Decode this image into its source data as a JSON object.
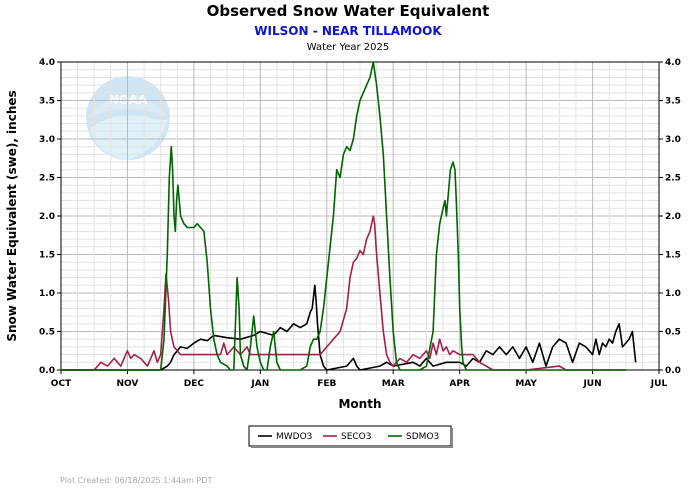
{
  "chart_data": {
    "type": "line",
    "title": "Observed Snow Water Equivalent",
    "subtitle": "WILSON - NEAR TILLAMOOK",
    "subsubtitle": "Water Year 2025",
    "xlabel": "Month",
    "ylabel": "Snow Water Equivalent (swe),  inches",
    "x_ticks": [
      "OCT",
      "NOV",
      "DEC",
      "JAN",
      "FEB",
      "MAR",
      "APR",
      "MAY",
      "JUN",
      "JUL"
    ],
    "xlim": [
      0,
      9
    ],
    "ylim": [
      0,
      4.0
    ],
    "y_ticks": [
      "0.0",
      "0.5",
      "1.0",
      "1.5",
      "2.0",
      "2.5",
      "3.0",
      "3.5",
      "4.0"
    ],
    "grid": true,
    "legend_position": "bottom-center",
    "watermark": "NOAA",
    "footer": "Plot Created: 06/18/2025 1:44am PDT",
    "series": [
      {
        "name": "MWDO3",
        "color": "#000000",
        "points": [
          [
            0,
            0
          ],
          [
            1.5,
            0
          ],
          [
            1.6,
            0.05
          ],
          [
            1.65,
            0.1
          ],
          [
            1.7,
            0.2
          ],
          [
            1.75,
            0.25
          ],
          [
            1.8,
            0.3
          ],
          [
            1.9,
            0.28
          ],
          [
            2.0,
            0.35
          ],
          [
            2.1,
            0.4
          ],
          [
            2.2,
            0.38
          ],
          [
            2.3,
            0.45
          ],
          [
            2.5,
            0.42
          ],
          [
            2.7,
            0.4
          ],
          [
            2.9,
            0.45
          ],
          [
            3.0,
            0.5
          ],
          [
            3.2,
            0.45
          ],
          [
            3.3,
            0.55
          ],
          [
            3.4,
            0.5
          ],
          [
            3.5,
            0.6
          ],
          [
            3.6,
            0.55
          ],
          [
            3.7,
            0.6
          ],
          [
            3.75,
            0.75
          ],
          [
            3.78,
            0.8
          ],
          [
            3.8,
            0.95
          ],
          [
            3.82,
            1.1
          ],
          [
            3.84,
            0.9
          ],
          [
            3.86,
            0.6
          ],
          [
            3.9,
            0.2
          ],
          [
            3.95,
            0.05
          ],
          [
            4.0,
            0
          ],
          [
            4.3,
            0.05
          ],
          [
            4.4,
            0.15
          ],
          [
            4.45,
            0.05
          ],
          [
            4.5,
            0
          ],
          [
            4.8,
            0.05
          ],
          [
            4.9,
            0.1
          ],
          [
            5.0,
            0.05
          ],
          [
            5.3,
            0.1
          ],
          [
            5.4,
            0.05
          ],
          [
            5.5,
            0.15
          ],
          [
            5.6,
            0.05
          ],
          [
            5.8,
            0.1
          ],
          [
            6.0,
            0.1
          ],
          [
            6.1,
            0.05
          ],
          [
            6.2,
            0.15
          ],
          [
            6.3,
            0.1
          ],
          [
            6.4,
            0.25
          ],
          [
            6.5,
            0.2
          ],
          [
            6.6,
            0.3
          ],
          [
            6.7,
            0.2
          ],
          [
            6.8,
            0.3
          ],
          [
            6.9,
            0.15
          ],
          [
            7.0,
            0.3
          ],
          [
            7.1,
            0.1
          ],
          [
            7.2,
            0.35
          ],
          [
            7.3,
            0.05
          ],
          [
            7.4,
            0.3
          ],
          [
            7.5,
            0.4
          ],
          [
            7.6,
            0.35
          ],
          [
            7.7,
            0.1
          ],
          [
            7.8,
            0.35
          ],
          [
            7.9,
            0.3
          ],
          [
            8.0,
            0.2
          ],
          [
            8.05,
            0.4
          ],
          [
            8.1,
            0.2
          ],
          [
            8.15,
            0.35
          ],
          [
            8.2,
            0.3
          ],
          [
            8.25,
            0.4
          ],
          [
            8.3,
            0.35
          ],
          [
            8.35,
            0.5
          ],
          [
            8.4,
            0.6
          ],
          [
            8.45,
            0.3
          ],
          [
            8.5,
            0.35
          ],
          [
            8.55,
            0.4
          ],
          [
            8.6,
            0.5
          ],
          [
            8.65,
            0.1
          ]
        ]
      },
      {
        "name": "SECO3",
        "color": "#a02050",
        "points": [
          [
            0,
            0
          ],
          [
            0.5,
            0
          ],
          [
            0.6,
            0.1
          ],
          [
            0.7,
            0.05
          ],
          [
            0.8,
            0.15
          ],
          [
            0.85,
            0.1
          ],
          [
            0.9,
            0.05
          ],
          [
            1.0,
            0.25
          ],
          [
            1.05,
            0.15
          ],
          [
            1.1,
            0.2
          ],
          [
            1.2,
            0.15
          ],
          [
            1.3,
            0.05
          ],
          [
            1.4,
            0.25
          ],
          [
            1.45,
            0.1
          ],
          [
            1.5,
            0.2
          ],
          [
            1.55,
            0.8
          ],
          [
            1.58,
            1.25
          ],
          [
            1.62,
            0.9
          ],
          [
            1.65,
            0.5
          ],
          [
            1.7,
            0.3
          ],
          [
            1.75,
            0.25
          ],
          [
            1.8,
            0.2
          ],
          [
            2.0,
            0.2
          ],
          [
            2.2,
            0.2
          ],
          [
            2.4,
            0.2
          ],
          [
            2.45,
            0.35
          ],
          [
            2.5,
            0.2
          ],
          [
            2.6,
            0.3
          ],
          [
            2.7,
            0.2
          ],
          [
            2.8,
            0.3
          ],
          [
            2.85,
            0.2
          ],
          [
            3.0,
            0.2
          ],
          [
            3.2,
            0.2
          ],
          [
            3.5,
            0.2
          ],
          [
            3.7,
            0.2
          ],
          [
            3.9,
            0.2
          ],
          [
            4.0,
            0.3
          ],
          [
            4.1,
            0.4
          ],
          [
            4.2,
            0.5
          ],
          [
            4.3,
            0.8
          ],
          [
            4.35,
            1.2
          ],
          [
            4.4,
            1.4
          ],
          [
            4.45,
            1.45
          ],
          [
            4.5,
            1.55
          ],
          [
            4.55,
            1.5
          ],
          [
            4.6,
            1.7
          ],
          [
            4.65,
            1.8
          ],
          [
            4.7,
            2.0
          ],
          [
            4.72,
            1.9
          ],
          [
            4.75,
            1.5
          ],
          [
            4.8,
            1.0
          ],
          [
            4.85,
            0.5
          ],
          [
            4.9,
            0.2
          ],
          [
            4.95,
            0.1
          ],
          [
            5.0,
            0.05
          ],
          [
            5.1,
            0.15
          ],
          [
            5.2,
            0.1
          ],
          [
            5.3,
            0.2
          ],
          [
            5.4,
            0.15
          ],
          [
            5.5,
            0.25
          ],
          [
            5.55,
            0.15
          ],
          [
            5.6,
            0.35
          ],
          [
            5.65,
            0.2
          ],
          [
            5.7,
            0.4
          ],
          [
            5.75,
            0.25
          ],
          [
            5.8,
            0.3
          ],
          [
            5.85,
            0.2
          ],
          [
            5.9,
            0.25
          ],
          [
            6.0,
            0.2
          ],
          [
            6.2,
            0.2
          ],
          [
            6.3,
            0.1
          ],
          [
            6.4,
            0.05
          ],
          [
            6.5,
            0
          ],
          [
            7.0,
            0
          ],
          [
            7.5,
            0.05
          ],
          [
            7.6,
            0
          ],
          [
            8.0,
            0
          ],
          [
            8.5,
            0
          ]
        ]
      },
      {
        "name": "SDMO3",
        "color": "#006400",
        "points": [
          [
            0,
            0
          ],
          [
            1.5,
            0
          ],
          [
            1.55,
            0.4
          ],
          [
            1.6,
            1.5
          ],
          [
            1.63,
            2.5
          ],
          [
            1.66,
            2.9
          ],
          [
            1.68,
            2.6
          ],
          [
            1.7,
            2.0
          ],
          [
            1.72,
            1.8
          ],
          [
            1.74,
            2.2
          ],
          [
            1.76,
            2.4
          ],
          [
            1.78,
            2.2
          ],
          [
            1.8,
            2.0
          ],
          [
            1.85,
            1.9
          ],
          [
            1.9,
            1.85
          ],
          [
            2.0,
            1.85
          ],
          [
            2.05,
            1.9
          ],
          [
            2.1,
            1.85
          ],
          [
            2.15,
            1.8
          ],
          [
            2.2,
            1.4
          ],
          [
            2.25,
            0.8
          ],
          [
            2.3,
            0.4
          ],
          [
            2.35,
            0.2
          ],
          [
            2.4,
            0.1
          ],
          [
            2.5,
            0.05
          ],
          [
            2.55,
            0
          ],
          [
            2.6,
            0
          ],
          [
            2.65,
            1.2
          ],
          [
            2.68,
            0.8
          ],
          [
            2.7,
            0.2
          ],
          [
            2.75,
            0.05
          ],
          [
            2.8,
            0
          ],
          [
            2.85,
            0.3
          ],
          [
            2.9,
            0.7
          ],
          [
            2.95,
            0.3
          ],
          [
            3.0,
            0.1
          ],
          [
            3.05,
            0
          ],
          [
            3.1,
            0
          ],
          [
            3.15,
            0.3
          ],
          [
            3.2,
            0.5
          ],
          [
            3.25,
            0.1
          ],
          [
            3.3,
            0
          ],
          [
            3.4,
            0
          ],
          [
            3.5,
            0
          ],
          [
            3.6,
            0
          ],
          [
            3.7,
            0.05
          ],
          [
            3.75,
            0.3
          ],
          [
            3.8,
            0.4
          ],
          [
            3.85,
            0.4
          ],
          [
            3.9,
            0.5
          ],
          [
            3.95,
            0.8
          ],
          [
            4.0,
            1.2
          ],
          [
            4.05,
            1.6
          ],
          [
            4.1,
            2.0
          ],
          [
            4.15,
            2.6
          ],
          [
            4.2,
            2.5
          ],
          [
            4.25,
            2.8
          ],
          [
            4.3,
            2.9
          ],
          [
            4.35,
            2.85
          ],
          [
            4.4,
            3.0
          ],
          [
            4.45,
            3.3
          ],
          [
            4.5,
            3.5
          ],
          [
            4.55,
            3.6
          ],
          [
            4.6,
            3.7
          ],
          [
            4.65,
            3.8
          ],
          [
            4.7,
            4.0
          ],
          [
            4.75,
            3.7
          ],
          [
            4.8,
            3.3
          ],
          [
            4.85,
            2.8
          ],
          [
            4.9,
            2.0
          ],
          [
            4.95,
            1.2
          ],
          [
            5.0,
            0.5
          ],
          [
            5.05,
            0.1
          ],
          [
            5.1,
            0
          ],
          [
            5.2,
            0
          ],
          [
            5.4,
            0
          ],
          [
            5.5,
            0.05
          ],
          [
            5.6,
            0.5
          ],
          [
            5.65,
            1.5
          ],
          [
            5.7,
            1.9
          ],
          [
            5.75,
            2.1
          ],
          [
            5.78,
            2.2
          ],
          [
            5.8,
            2.0
          ],
          [
            5.83,
            2.3
          ],
          [
            5.86,
            2.6
          ],
          [
            5.9,
            2.7
          ],
          [
            5.93,
            2.6
          ],
          [
            5.95,
            2.2
          ],
          [
            5.98,
            1.5
          ],
          [
            6.0,
            0.8
          ],
          [
            6.03,
            0.3
          ],
          [
            6.05,
            0.1
          ],
          [
            6.1,
            0
          ],
          [
            7.0,
            0
          ],
          [
            8.5,
            0
          ]
        ]
      }
    ]
  }
}
